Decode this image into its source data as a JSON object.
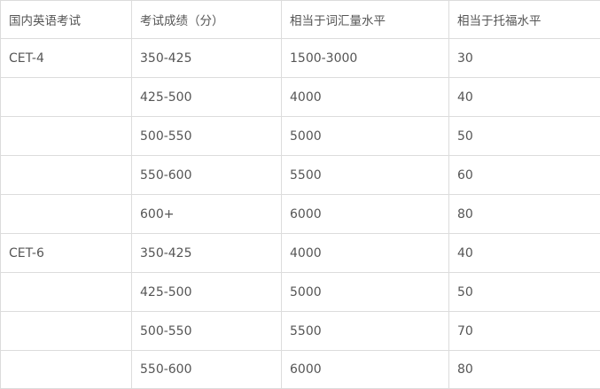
{
  "headers": [
    "国内英语考试",
    "考试成绩（分）",
    "相当于词汇量水平",
    "相当于托福水平"
  ],
  "rows": [
    [
      "CET-4",
      "350-425",
      "1500-3000",
      "30"
    ],
    [
      "",
      "425-500",
      "4000",
      "40"
    ],
    [
      "",
      "500-550",
      "5000",
      "50"
    ],
    [
      "",
      "550-600",
      "5500",
      "60"
    ],
    [
      "",
      "600+",
      "6000",
      "80"
    ],
    [
      "CET-6",
      "350-425",
      "4000",
      "40"
    ],
    [
      "",
      "425-500",
      "5000",
      "50"
    ],
    [
      "",
      "500-550",
      "5500",
      "70"
    ],
    [
      "",
      "550-600",
      "6000",
      "80"
    ]
  ]
}
